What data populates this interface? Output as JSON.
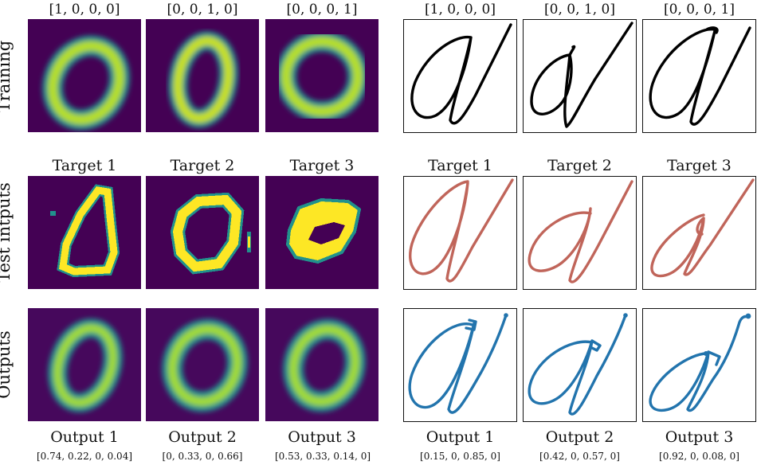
{
  "column_headers": {
    "left": [
      "[1, 0, 0, 0]",
      "[0, 0, 1, 0]",
      "[0, 0, 0, 1]"
    ],
    "right": [
      "[1, 0, 0, 0]",
      "[0, 0, 1, 0]",
      "[0, 0, 0, 1]"
    ]
  },
  "row_labels": [
    "Training",
    "Test intputs",
    "Outputs"
  ],
  "target_labels": {
    "left": [
      "Target 1",
      "Target 2",
      "Target 3"
    ],
    "right": [
      "Target 1",
      "Target 2",
      "Target 3"
    ]
  },
  "output_labels": {
    "left": [
      "Output 1",
      "Output 2",
      "Output 3"
    ],
    "right": [
      "Output 1",
      "Output 2",
      "Output 3"
    ]
  },
  "output_vectors": {
    "left": [
      "[0.74, 0.22, 0, 0.04]",
      "[0, 0.33, 0, 0.66]",
      "[0.53, 0.33, 0.14, 0]"
    ],
    "right": [
      "[0.15, 0, 0.85, 0]",
      "[0.42, 0, 0.57, 0]",
      "[0.92, 0, 0.08, 0]"
    ]
  },
  "colors": {
    "heatmap_background": "#440154",
    "heatmap_ring": "#fde725",
    "heatmap_mid": "#21918c",
    "training_stroke": "#000000",
    "target_stroke": "#c0655a",
    "output_stroke": "#2274ad"
  }
}
